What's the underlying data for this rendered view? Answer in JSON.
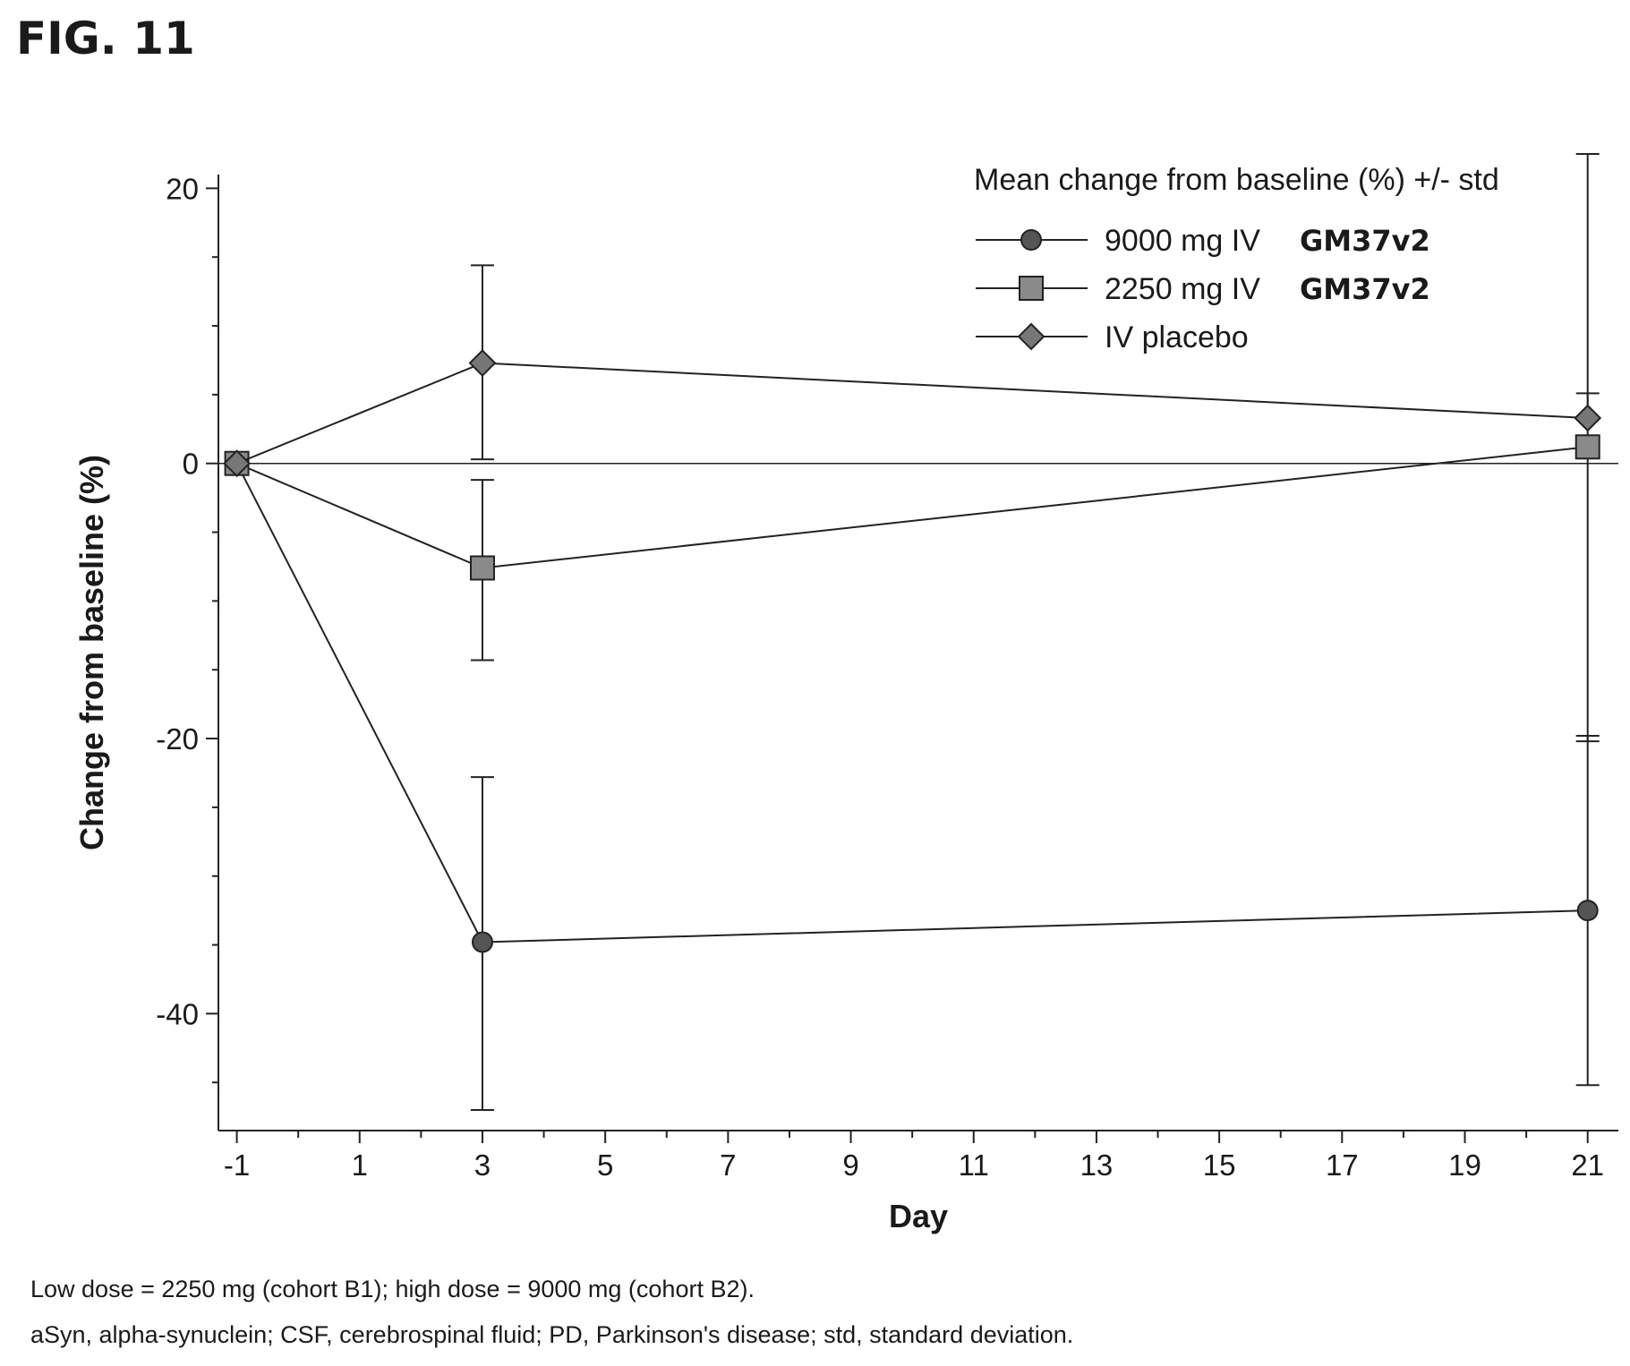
{
  "figure_label": "FIG. 11",
  "footnotes": [
    "Low dose = 2250 mg (cohort B1); high dose = 9000 mg (cohort B2).",
    "aSyn, alpha-synuclein; CSF, cerebrospinal fluid; PD, Parkinson's disease; std, standard deviation."
  ],
  "chart_data": {
    "type": "line",
    "xlabel": "Day",
    "ylabel": "Change from baseline (%)",
    "xlim": [
      -1.3,
      21.5
    ],
    "ylim": [
      -48.5,
      21
    ],
    "xticks": [
      -1,
      1,
      3,
      5,
      7,
      9,
      11,
      13,
      15,
      17,
      19,
      21
    ],
    "yticks": [
      20,
      0,
      -20,
      -40
    ],
    "reference_line_y": 0,
    "legend": {
      "title": "Mean change from baseline (%) +/- std",
      "position": "top-right"
    },
    "series": [
      {
        "name": "9000 mg IV",
        "tag": "GM37v2",
        "marker": "circle",
        "color": "#555555",
        "x": [
          -1,
          3,
          21
        ],
        "y": [
          0,
          -34.8,
          -32.5
        ],
        "err_low": [
          null,
          -47,
          -45.2
        ],
        "err_high": [
          null,
          -22.8,
          -19.8
        ]
      },
      {
        "name": "2250 mg IV",
        "tag": "GM37v2",
        "marker": "square",
        "color": "#8a8a8a",
        "x": [
          -1,
          3,
          21
        ],
        "y": [
          0,
          -7.6,
          1.2
        ],
        "err_low": [
          null,
          -14.3,
          -20.2
        ],
        "err_high": [
          null,
          -1.2,
          22.5
        ]
      },
      {
        "name": "IV placebo",
        "tag": "",
        "marker": "diamond",
        "color": "#777777",
        "x": [
          -1,
          3,
          21
        ],
        "y": [
          0,
          7.3,
          3.3
        ],
        "err_low": [
          null,
          0.3,
          null
        ],
        "err_high": [
          null,
          14.4,
          5.1
        ]
      }
    ]
  }
}
